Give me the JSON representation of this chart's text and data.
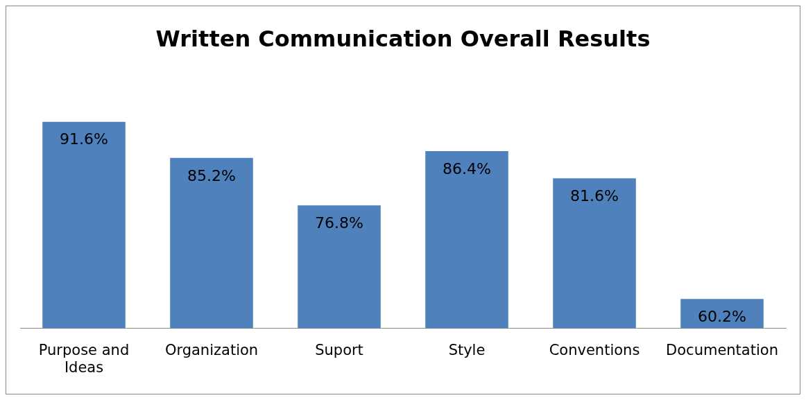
{
  "chart_data": {
    "type": "bar",
    "title": "Written Communication Overall Results",
    "categories": [
      "Purpose and Ideas",
      "Organization",
      "Suport",
      "Style",
      "Conventions",
      "Documentation"
    ],
    "values": [
      91.6,
      85.2,
      76.8,
      86.4,
      81.6,
      60.2
    ],
    "value_labels": [
      "91.6%",
      "85.2%",
      "76.8%",
      "86.4%",
      "81.6%",
      "60.2%"
    ],
    "color": "#4f81bd",
    "tick_labels": "x",
    "grid": false,
    "legend": false
  }
}
